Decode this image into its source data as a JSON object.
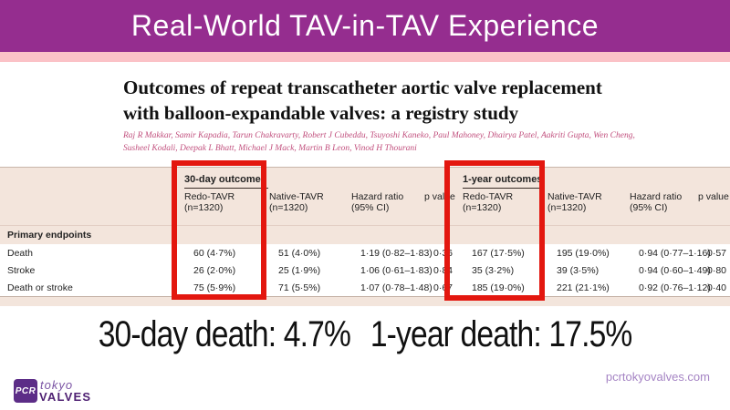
{
  "header": {
    "title": "Real-World TAV-in-TAV Experience"
  },
  "paper": {
    "title_line1": "Outcomes of repeat transcatheter aortic valve replacement",
    "title_line2": "with balloon-expandable valves: a registry study",
    "authors_line1": "Raj R Makkar, Samir Kapadia, Tarun Chakravarty, Robert J Cubeddu, Tsuyoshi Kaneko, Paul Mahoney, Dhairya Patel, Aakriti Gupta, Wen Cheng,",
    "authors_line2": "Susheel Kodali, Deepak L Bhatt, Michael J Mack, Martin B Leon, Vinod H Thourani"
  },
  "table": {
    "groups": [
      {
        "label": "30-day outcomes"
      },
      {
        "label": "1-year outcomes"
      }
    ],
    "cols": [
      {
        "l1": "Redo-TAVR",
        "l2": "(n=1320)"
      },
      {
        "l1": "Native-TAVR",
        "l2": "(n=1320)"
      },
      {
        "l1": "Hazard ratio",
        "l2": "(95% CI)"
      },
      {
        "l1": "p value",
        "l2": ""
      },
      {
        "l1": "Redo-TAVR",
        "l2": "(n=1320)"
      },
      {
        "l1": "Native-TAVR",
        "l2": "(n=1320)"
      },
      {
        "l1": "Hazard ratio",
        "l2": "(95% CI)"
      },
      {
        "l1": "p value",
        "l2": ""
      }
    ],
    "section": "Primary endpoints",
    "rows": [
      {
        "label": "Death",
        "c": [
          "60 (4·7%)",
          "51 (4·0%)",
          "1·19 (0·82–1·83)",
          "0·36",
          "167 (17·5%)",
          "195 (19·0%)",
          "0·94 (0·77–1·16)",
          "0·57"
        ]
      },
      {
        "label": "Stroke",
        "c": [
          "26 (2·0%)",
          "25 (1·9%)",
          "1·06 (0·61–1·83)",
          "0·84",
          "35 (3·2%)",
          "39 (3·5%)",
          "0·94 (0·60–1·49)",
          "0·80"
        ]
      },
      {
        "label": "Death or stroke",
        "c": [
          "75 (5·9%)",
          "71 (5·5%)",
          "1·07 (0·78–1·48)",
          "0·67",
          "185 (19·0%)",
          "221 (21·1%)",
          "0·92 (0·76–1·12)",
          "0·40"
        ]
      }
    ]
  },
  "highlight": {
    "msg_30day": "30-day death: 4.7%",
    "msg_1year": "1-year death: 17.5%"
  },
  "footer": {
    "logo_pcr": "PCR",
    "logo_tokyo": "tokyo",
    "logo_valves": "VALVES",
    "url": "pcrtokyovalves.com"
  },
  "colors": {
    "header_purple": "#952d8f",
    "strip_pink": "#fbc2c7",
    "table_beige": "#f3e5dc",
    "highlight_red": "#e3170f",
    "authors_pink": "#c14f7d",
    "logo_purple": "#5c2d87",
    "url_purple": "#a584c4"
  }
}
